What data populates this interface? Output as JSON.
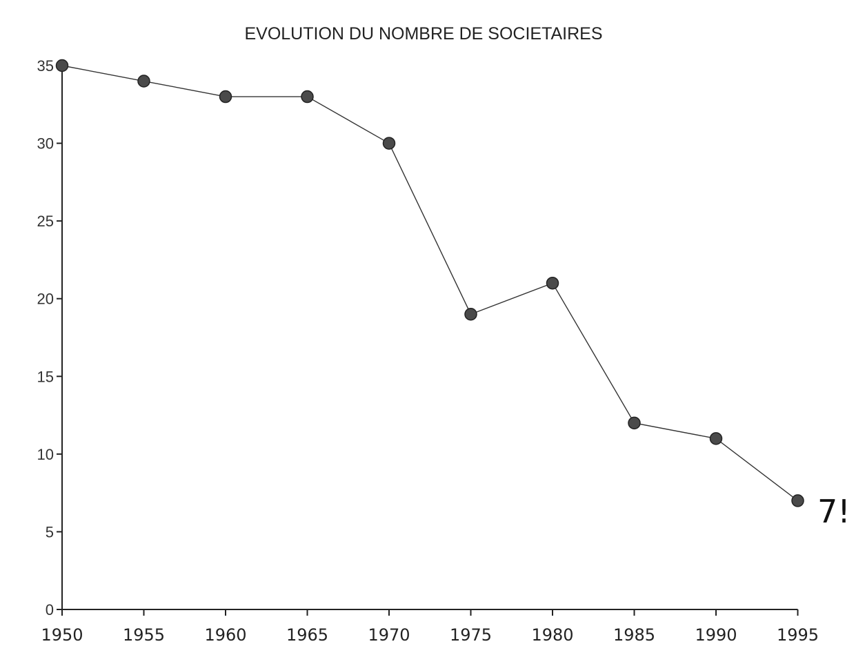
{
  "chart_data": {
    "type": "line",
    "title": "EVOLUTION DU NOMBRE DE SOCIETAIRES",
    "xlabel": "",
    "ylabel": "",
    "x": [
      "1950",
      "1955",
      "1960",
      "1965",
      "1970",
      "1975",
      "1980",
      "1985",
      "1990",
      "1995"
    ],
    "series": [
      {
        "values": [
          35,
          34,
          33,
          33,
          30,
          19,
          21,
          12,
          11,
          7
        ]
      }
    ],
    "ylim": [
      0,
      35
    ],
    "yticks": [
      0,
      5,
      10,
      15,
      20,
      25,
      30,
      35
    ],
    "grid": false,
    "legend": "none",
    "annotation": {
      "text": "7!",
      "at_x": "1995"
    },
    "colors": {
      "marker_fill": "#4a4a4a",
      "marker_stroke": "#222222",
      "line": "#333333",
      "axis": "#222222"
    }
  }
}
